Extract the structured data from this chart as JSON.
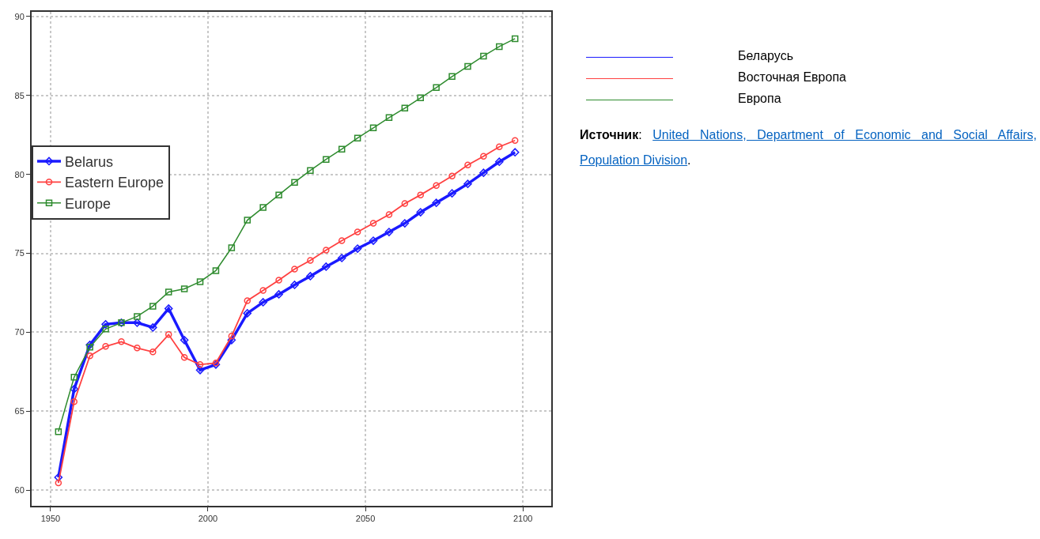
{
  "chart_data": {
    "type": "line",
    "x": [
      1952.5,
      1957.5,
      1962.5,
      1967.5,
      1972.5,
      1977.5,
      1982.5,
      1987.5,
      1992.5,
      1997.5,
      2002.5,
      2007.5,
      2012.5,
      2017.5,
      2022.5,
      2027.5,
      2032.5,
      2037.5,
      2042.5,
      2047.5,
      2052.5,
      2057.5,
      2062.5,
      2067.5,
      2072.5,
      2077.5,
      2082.5,
      2087.5,
      2092.5,
      2097.5
    ],
    "series": [
      {
        "name": "Belarus",
        "color": "#1a1aff",
        "marker": "diamond",
        "values": [
          60.8,
          66.4,
          69.2,
          70.5,
          70.6,
          70.6,
          70.3,
          71.5,
          69.5,
          67.6,
          67.95,
          69.5,
          71.2,
          71.9,
          72.4,
          73.0,
          73.55,
          74.15,
          74.7,
          75.3,
          75.8,
          76.35,
          76.9,
          77.6,
          78.2,
          78.8,
          79.4,
          80.1,
          80.8,
          81.4
        ]
      },
      {
        "name": "Eastern Europe",
        "color": "#ff4040",
        "marker": "circle",
        "values": [
          60.45,
          65.6,
          68.5,
          69.1,
          69.4,
          69.0,
          68.75,
          69.85,
          68.4,
          67.95,
          68.05,
          69.75,
          72.0,
          72.65,
          73.3,
          74.0,
          74.55,
          75.2,
          75.8,
          76.35,
          76.9,
          77.45,
          78.15,
          78.7,
          79.3,
          79.9,
          80.6,
          81.15,
          81.75,
          82.15
        ]
      },
      {
        "name": "Europe",
        "color": "#2e8b2e",
        "marker": "square",
        "values": [
          63.7,
          67.15,
          69.05,
          70.2,
          70.6,
          71.0,
          71.65,
          72.55,
          72.75,
          73.2,
          73.9,
          75.35,
          77.1,
          77.9,
          78.7,
          79.5,
          80.25,
          80.95,
          81.6,
          82.3,
          82.95,
          83.6,
          84.2,
          84.85,
          85.5,
          86.2,
          86.85,
          87.5,
          88.1,
          88.6
        ]
      }
    ],
    "xlim": [
      1944,
      2109
    ],
    "xticks": [
      1950,
      2000,
      2050,
      2100
    ],
    "ylim": [
      59,
      90.3
    ],
    "yticks": [
      60,
      65,
      70,
      75,
      80,
      85,
      90
    ],
    "grid": true,
    "legend": "left",
    "line_style": "solid",
    "annotations": [
      "Беларусь",
      "Восточная Европа",
      "Европа",
      "Источник: United Nations, Department of Economic and Social Affairs, Population Division."
    ]
  }
}
